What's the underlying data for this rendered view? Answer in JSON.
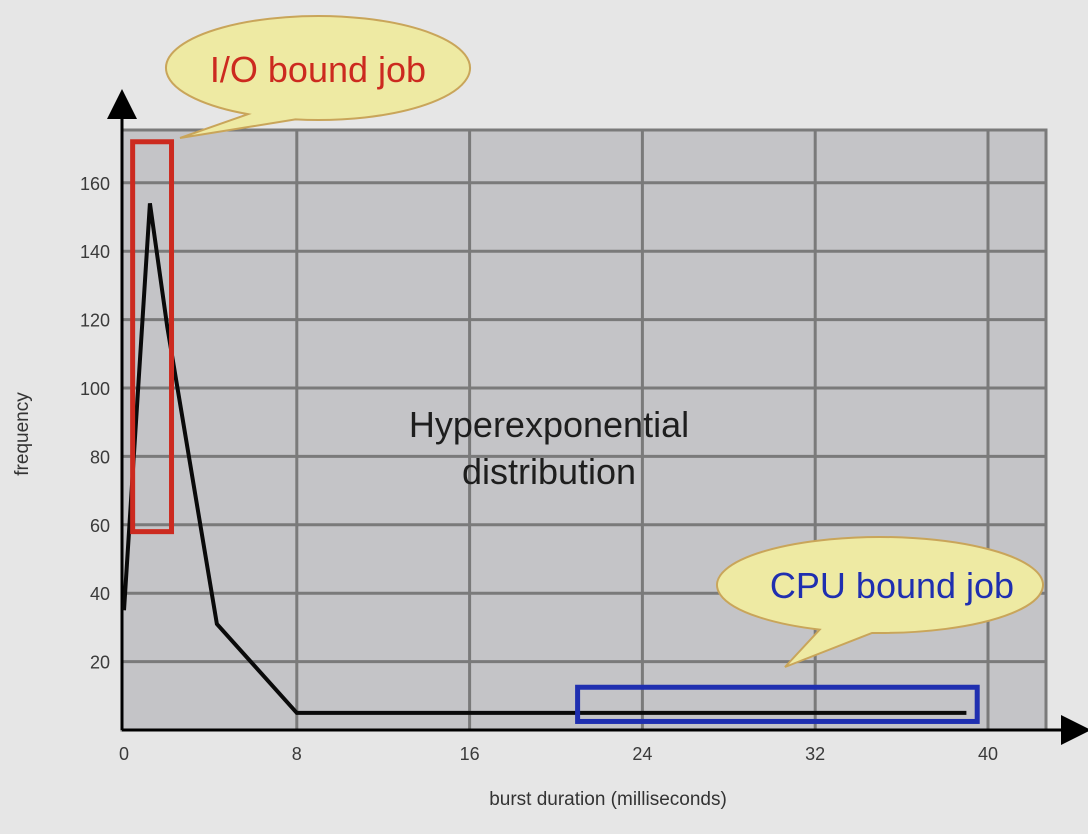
{
  "chart_data": {
    "type": "line",
    "title": "",
    "xlabel": "burst duration (milliseconds)",
    "ylabel": "frequency",
    "xlim": [
      0,
      42
    ],
    "ylim": [
      0,
      174
    ],
    "grid": true,
    "x_ticks": [
      0,
      8,
      16,
      24,
      32,
      40
    ],
    "y_ticks": [
      20,
      40,
      60,
      80,
      100,
      120,
      140,
      160
    ],
    "series": [
      {
        "x": [
          0,
          1.2,
          2,
          4.3,
          8,
          16,
          24,
          32,
          39
        ],
        "y": [
          35,
          154,
          118,
          31,
          5,
          5,
          5,
          5,
          5
        ]
      }
    ],
    "center_text": [
      "Hyperexponential",
      "distribution"
    ],
    "annotations": [
      {
        "label": "I/O bound job",
        "color": "#cc2a1f",
        "region": {
          "x": [
            0.4,
            2.2
          ],
          "y": [
            58,
            172
          ]
        }
      },
      {
        "label": "CPU bound job",
        "color": "#1f2fb0",
        "region": {
          "x": [
            21,
            39.5
          ],
          "y": 2.5,
          "y_top": 12.5
        }
      }
    ],
    "colors": {
      "plot_bg": "#c4c4c7",
      "grid": "#7a7a7a",
      "line": "#0a0a0a",
      "bubble_fill": "#eeeaa3",
      "bubble_stroke": "#c9a55a"
    }
  }
}
